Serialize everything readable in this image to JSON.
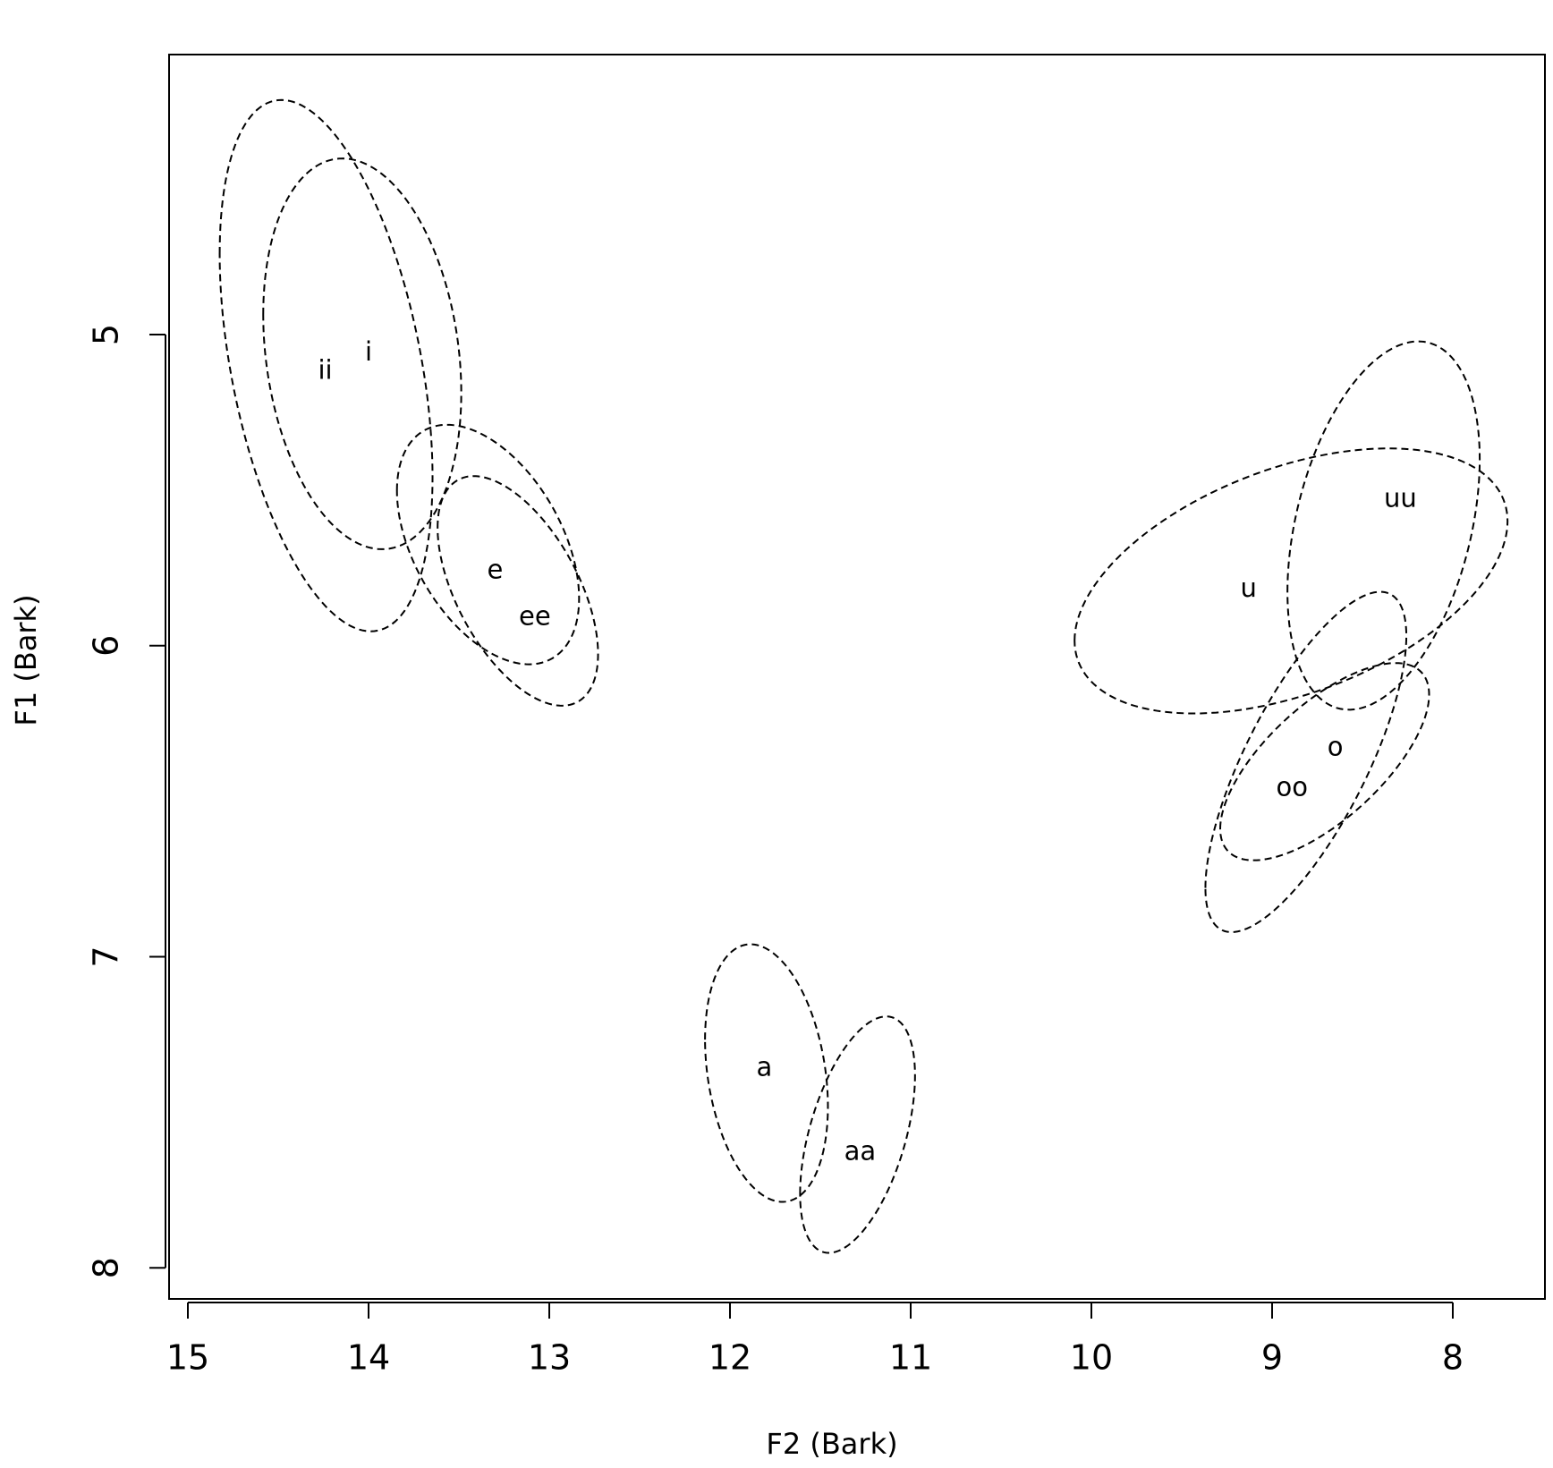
{
  "chart_data": {
    "type": "ellipse",
    "x_label": "F2 (Bark)",
    "y_label": "F1 (Bark)",
    "xlim": [
      15.104,
      7.49
    ],
    "ylim": [
      8.1,
      4.1
    ],
    "xticks": [
      15,
      14,
      13,
      12,
      11,
      10,
      9,
      8
    ],
    "yticks": [
      5,
      6,
      7,
      8
    ],
    "color": "#000000",
    "series": [
      {
        "label": "ii",
        "label_x": 14.24,
        "label_y": 5.12,
        "x": 14.235,
        "y": 5.1,
        "sx": 0.589,
        "sy": 0.854,
        "r": -0.42
      },
      {
        "label": "i",
        "label_x": 14.0,
        "label_y": 5.06,
        "x": 14.035,
        "y": 5.062,
        "sx": 0.548,
        "sy": 0.628,
        "r": -0.2
      },
      {
        "label": "e",
        "label_x": 13.3,
        "label_y": 5.76,
        "x": 13.339,
        "y": 5.675,
        "sx": 0.504,
        "sy": 0.385,
        "r": -0.45
      },
      {
        "label": "ee",
        "label_x": 13.08,
        "label_y": 5.91,
        "x": 13.174,
        "y": 5.824,
        "sx": 0.444,
        "sy": 0.369,
        "r": -0.55
      },
      {
        "label": "u",
        "label_x": 9.13,
        "label_y": 5.82,
        "x": 8.895,
        "y": 5.792,
        "sx": 1.198,
        "sy": 0.426,
        "r": 0.45
      },
      {
        "label": "uu",
        "label_x": 8.29,
        "label_y": 5.53,
        "x": 8.383,
        "y": 5.614,
        "sx": 0.532,
        "sy": 0.592,
        "r": 0.36
      },
      {
        "label": "o",
        "label_x": 8.65,
        "label_y": 6.33,
        "x": 8.709,
        "y": 6.373,
        "sx": 0.578,
        "sy": 0.317,
        "r": 0.68
      },
      {
        "label": "oo",
        "label_x": 8.89,
        "label_y": 6.46,
        "x": 8.813,
        "y": 6.374,
        "sx": 0.556,
        "sy": 0.547,
        "r": 0.74
      },
      {
        "label": "a",
        "label_x": 11.81,
        "label_y": 7.36,
        "x": 11.798,
        "y": 7.374,
        "sx": 0.34,
        "sy": 0.414,
        "r": -0.26
      },
      {
        "label": "aa",
        "label_x": 11.28,
        "label_y": 7.63,
        "x": 11.294,
        "y": 7.572,
        "sx": 0.318,
        "sy": 0.38,
        "r": 0.5
      }
    ]
  }
}
